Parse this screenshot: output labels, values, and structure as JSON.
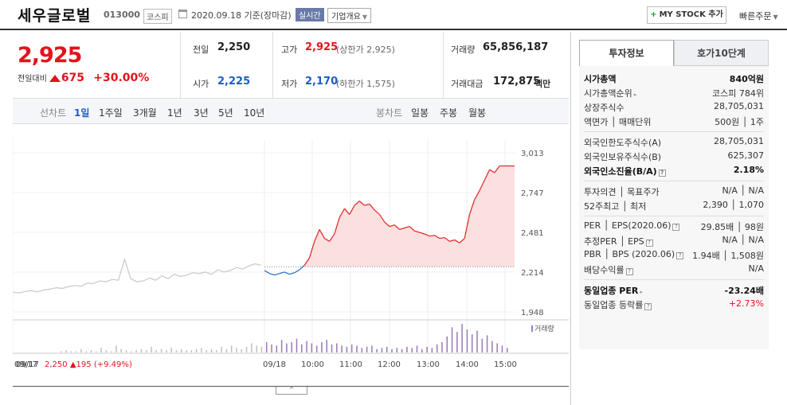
{
  "header": {
    "stock_name": "세우글로벌",
    "stock_code": "013000",
    "market": "코스피",
    "date_text": "2020.09.18 기준(장마감)",
    "realtime_badge": "실시간",
    "company_info_label": "기업개요",
    "my_stock_label": "MY STOCK 추가",
    "quick_order_label": "빠른주문"
  },
  "quote": {
    "price": "2,925",
    "change_label": "전일대비",
    "change_value": "675",
    "change_pct": "+30.00%",
    "prev_label": "전일",
    "prev_value": "2,250",
    "open_label": "시가",
    "open_value": "2,225",
    "high_label": "고가",
    "high_value": "2,925",
    "high_limit": "(상한가 2,925)",
    "low_label": "저가",
    "low_value": "2,170",
    "low_limit": "(하한가 1,575)",
    "volume_label": "거래량",
    "volume_value": "65,856,187",
    "amount_label": "거래대금",
    "amount_value": "172,875",
    "amount_unit": "백만"
  },
  "period_tabs": {
    "line_label": "선차트",
    "items": [
      "1일",
      "1주일",
      "3개월",
      "1년",
      "3년",
      "5년",
      "10년"
    ],
    "candle_label": "봉차트",
    "candle_items": [
      "일봉",
      "주봉",
      "월봉"
    ]
  },
  "chart_data": {
    "type": "line",
    "title": "",
    "x_ticks": [
      "09/17",
      "09/18",
      "10:00",
      "11:00",
      "12:00",
      "13:00",
      "14:00",
      "15:00"
    ],
    "y_ticks": [
      3013,
      2747,
      2481,
      2214,
      1948
    ],
    "ylim": [
      1948,
      3013
    ],
    "prev_close": 2250,
    "volume_legend": "거래량",
    "series": [
      {
        "name": "09/17",
        "color": "#c8c8c8",
        "values": [
          2080,
          2075,
          2085,
          2090,
          2082,
          2095,
          2100,
          2110,
          2105,
          2118,
          2125,
          2120,
          2140,
          2138,
          2155,
          2150,
          2165,
          2160,
          2300,
          2170,
          2150,
          2155,
          2175,
          2160,
          2190,
          2170,
          2200,
          2185,
          2195,
          2210,
          2205,
          2215,
          2200,
          2230,
          2215,
          2225,
          2245,
          2235,
          2255,
          2270,
          2260
        ]
      },
      {
        "name": "09/18",
        "color": "#e03030",
        "values": [
          2225,
          2205,
          2195,
          2205,
          2215,
          2200,
          2210,
          2230,
          2260,
          2310,
          2420,
          2500,
          2440,
          2420,
          2470,
          2580,
          2640,
          2600,
          2660,
          2690,
          2660,
          2670,
          2630,
          2600,
          2550,
          2520,
          2530,
          2500,
          2510,
          2520,
          2490,
          2480,
          2470,
          2455,
          2460,
          2440,
          2445,
          2420,
          2430,
          2410,
          2440,
          2600,
          2700,
          2760,
          2830,
          2900,
          2880,
          2925,
          2925,
          2925,
          2925
        ]
      }
    ],
    "volume": [
      1,
      2,
      1,
      1,
      3,
      1,
      2,
      1,
      4,
      2,
      1,
      6,
      3,
      2,
      1,
      2,
      3,
      2,
      5,
      2,
      3,
      2,
      4,
      2,
      3,
      2,
      2,
      3,
      4,
      2,
      3,
      2,
      5,
      3,
      6,
      4,
      3,
      5,
      8,
      6,
      5,
      9,
      7,
      6,
      11,
      8,
      9,
      12,
      7,
      10,
      8,
      6,
      9,
      11,
      7,
      8,
      6,
      5,
      7,
      6,
      4,
      5,
      6,
      3,
      4,
      5,
      3,
      4,
      3,
      5,
      4,
      6,
      3,
      5,
      4,
      7,
      9,
      14,
      22,
      18,
      25,
      20,
      16,
      19,
      12,
      15,
      10,
      8,
      6,
      4
    ]
  },
  "chart_footer": {
    "date": "09/17",
    "price": "2,250",
    "change": "195",
    "pct": "(+9.49%)"
  },
  "right_panel": {
    "tabs": [
      "투자정보",
      "호가10단계"
    ],
    "rows": [
      {
        "k": "시가총액",
        "v": "840억원",
        "bold": true
      },
      {
        "k": "시가총액순위",
        "v": "코스피 784위",
        "tri": true
      },
      {
        "k": "상장주식수",
        "v": "28,705,031"
      },
      {
        "k": "액면가 │ 매매단위",
        "v": "500원 │ 1주"
      },
      {
        "k": "외국인한도주식수(A)",
        "v": "28,705,031"
      },
      {
        "k": "외국인보유주식수(B)",
        "v": "625,307"
      },
      {
        "k": "외국인소진율(B/A)",
        "v": "2.18%",
        "bold": true,
        "help": true
      },
      {
        "k": "투자의견 │ 목표주가",
        "v": "N/A │ N/A"
      },
      {
        "k": "52주최고 │ 최저",
        "v": "2,390 │ 1,070"
      },
      {
        "k": "PER │ EPS(2020.06)",
        "v": "29.85배 │ 98원",
        "help": true
      },
      {
        "k": "추정PER │ EPS",
        "v": "N/A │ N/A",
        "help": true
      },
      {
        "k": "PBR │ BPS (2020.06)",
        "v": "1.94배 │ 1,508원",
        "help": true
      },
      {
        "k": "배당수익률",
        "v": "N/A",
        "help": true
      },
      {
        "k": "동일업종 PER",
        "v": "-23.24배",
        "bold": true,
        "tri": true
      },
      {
        "k": "동일업종 등락률",
        "v": "+2.73%",
        "red": true,
        "help": true
      }
    ]
  }
}
